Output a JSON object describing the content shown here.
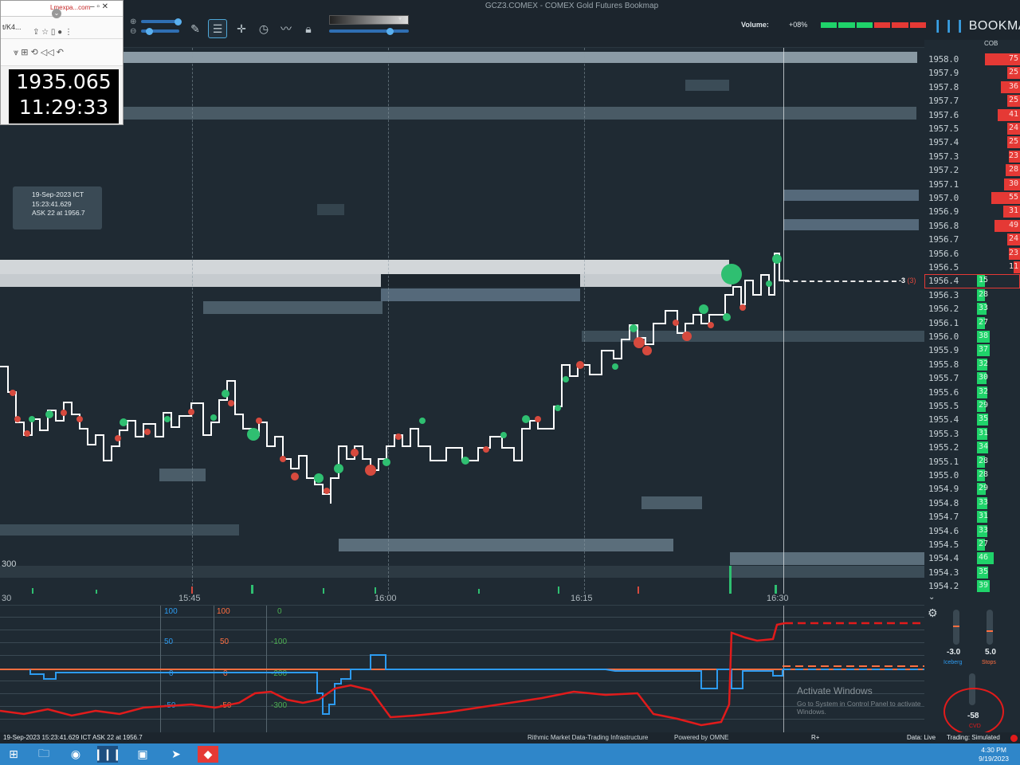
{
  "window": {
    "title": "GCZ3.COMEX - COMEX Gold Futures      Bookmap",
    "brand": "BOOKMAP"
  },
  "overlay": {
    "tab_text": "Lmexpa...com",
    "url_fragment": "t/K4...",
    "price": "1935.065",
    "time": "11:29:33"
  },
  "header": {
    "volume_label": "Volume:",
    "volume_pct": "+08%",
    "volume_bar_colors": [
      "#1fd36a",
      "#1fd36a",
      "#1fd36a",
      "#e53935",
      "#e53935",
      "#e53935"
    ]
  },
  "tooltip": {
    "date": "19-Sep-2023 ICT",
    "time": "15:23:41.629",
    "ask": "ASK 22 at 1956.7"
  },
  "ask_marker": {
    "value": "-3",
    "paren": "(3)"
  },
  "time_axis": [
    "30",
    "15:45",
    "16:00",
    "16:15",
    "16:30"
  ],
  "chart_left_label": "300",
  "ladder": {
    "header": "COB",
    "rows": [
      {
        "price": "1958.0",
        "qty": "75",
        "side": "ask",
        "size": 0.55
      },
      {
        "price": "1957.9",
        "qty": "25",
        "side": "ask",
        "size": 0.2
      },
      {
        "price": "1957.8",
        "qty": "36",
        "side": "ask",
        "size": 0.3
      },
      {
        "price": "1957.7",
        "qty": "25",
        "side": "ask",
        "size": 0.2
      },
      {
        "price": "1957.6",
        "qty": "41",
        "side": "ask",
        "size": 0.35
      },
      {
        "price": "1957.5",
        "qty": "24",
        "side": "ask",
        "size": 0.2
      },
      {
        "price": "1957.4",
        "qty": "25",
        "side": "ask",
        "size": 0.2
      },
      {
        "price": "1957.3",
        "qty": "23",
        "side": "ask",
        "size": 0.18
      },
      {
        "price": "1957.2",
        "qty": "28",
        "side": "ask",
        "size": 0.22
      },
      {
        "price": "1957.1",
        "qty": "30",
        "side": "ask",
        "size": 0.25
      },
      {
        "price": "1957.0",
        "qty": "55",
        "side": "ask",
        "size": 0.45
      },
      {
        "price": "1956.9",
        "qty": "31",
        "side": "ask",
        "size": 0.26
      },
      {
        "price": "1956.8",
        "qty": "49",
        "side": "ask",
        "size": 0.4
      },
      {
        "price": "1956.7",
        "qty": "24",
        "side": "ask",
        "size": 0.2
      },
      {
        "price": "1956.6",
        "qty": "23",
        "side": "ask",
        "size": 0.18
      },
      {
        "price": "1956.5",
        "qty": "11",
        "side": "ask",
        "size": 0.1
      },
      {
        "price": "1956.4",
        "qty": "15",
        "side": "bid",
        "size": 0.12,
        "current": true
      },
      {
        "price": "1956.3",
        "qty": "28",
        "side": "bid",
        "size": 0.22
      },
      {
        "price": "1956.2",
        "qty": "33",
        "side": "bid",
        "size": 0.25
      },
      {
        "price": "1956.1",
        "qty": "27",
        "side": "bid",
        "size": 0.22
      },
      {
        "price": "1956.0",
        "qty": "38",
        "side": "bid",
        "size": 0.3
      },
      {
        "price": "1955.9",
        "qty": "37",
        "side": "bid",
        "size": 0.3
      },
      {
        "price": "1955.8",
        "qty": "32",
        "side": "bid",
        "size": 0.26
      },
      {
        "price": "1955.7",
        "qty": "30",
        "side": "bid",
        "size": 0.25
      },
      {
        "price": "1955.6",
        "qty": "32",
        "side": "bid",
        "size": 0.26
      },
      {
        "price": "1955.5",
        "qty": "29",
        "side": "bid",
        "size": 0.24
      },
      {
        "price": "1955.4",
        "qty": "35",
        "side": "bid",
        "size": 0.28
      },
      {
        "price": "1955.3",
        "qty": "31",
        "side": "bid",
        "size": 0.26
      },
      {
        "price": "1955.2",
        "qty": "34",
        "side": "bid",
        "size": 0.28
      },
      {
        "price": "1955.1",
        "qty": "28",
        "side": "bid",
        "size": 0.22
      },
      {
        "price": "1955.0",
        "qty": "28",
        "side": "bid",
        "size": 0.22
      },
      {
        "price": "1954.9",
        "qty": "29",
        "side": "bid",
        "size": 0.24
      },
      {
        "price": "1954.8",
        "qty": "33",
        "side": "bid",
        "size": 0.26
      },
      {
        "price": "1954.7",
        "qty": "31",
        "side": "bid",
        "size": 0.26
      },
      {
        "price": "1954.6",
        "qty": "33",
        "side": "bid",
        "size": 0.26
      },
      {
        "price": "1954.5",
        "qty": "27",
        "side": "bid",
        "size": 0.22
      },
      {
        "price": "1954.4",
        "qty": "46",
        "side": "bid",
        "size": 0.36
      },
      {
        "price": "1954.3",
        "qty": "35",
        "side": "bid",
        "size": 0.28
      },
      {
        "price": "1954.2",
        "qty": "39",
        "side": "bid",
        "size": 0.3
      }
    ]
  },
  "indicator": {
    "blue_scale": [
      "100",
      "50",
      "0",
      "-50"
    ],
    "orange_scale": [
      "100",
      "50",
      "0",
      "-50"
    ],
    "green_scale": [
      "0",
      "-100",
      "-200",
      "-300"
    ],
    "watermark_title": "Activate Windows",
    "watermark_sub": "Go to System in Control Panel to activate Windows."
  },
  "widget": {
    "iceberg_value": "-3.0",
    "iceberg_label": "Iceberg",
    "stops_value": "5.0",
    "stops_label": "Stops",
    "cvd_value": "-58",
    "cvd_label": "CVD"
  },
  "statusbar": {
    "left": "19-Sep-2023 15:23:41.629 ICT     ASK 22 at 1956.7",
    "provider": "Rithmic  Market Data-Trading Infrastructure",
    "powered": "Powered by OMNE",
    "r_plus": "R+",
    "data": "Data: Live",
    "trading": "Trading: Simulated"
  },
  "taskbar": {
    "time": "4:30 PM",
    "date": "9/19/2023"
  }
}
